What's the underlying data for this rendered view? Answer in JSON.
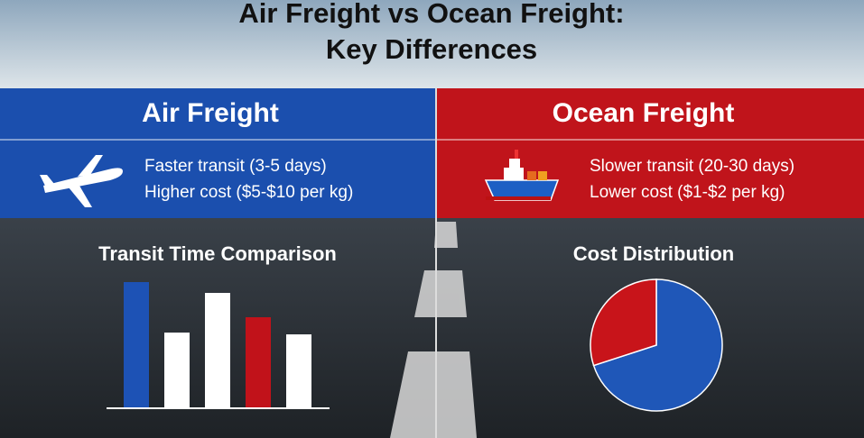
{
  "header": {
    "title_lines": [
      "Air Freight vs Ocean Freight:",
      "Key Differences"
    ]
  },
  "panels": [
    {
      "heading": "Air Freight",
      "color": "#1b4fae",
      "points": [
        "Faster transit (3-5 days)",
        "Higher cost ($5-$10 per kg)"
      ]
    },
    {
      "heading": "Ocean Freight",
      "color": "#c0141b",
      "points": [
        "Slower transit (20-30 days)",
        "Lower cost ($1-$2 per kg)"
      ]
    }
  ],
  "chart_data": [
    {
      "type": "bar",
      "title": "Transit Time Comparison",
      "categories": [
        null,
        null,
        null,
        null,
        null
      ],
      "values": [
        140,
        84,
        128,
        101,
        82
      ],
      "colors": [
        "#1d52b5",
        "#ffffff",
        "#ffffff",
        "#c1121a",
        "#ffffff"
      ],
      "ylim": [
        0,
        140
      ]
    },
    {
      "type": "pie",
      "title": "Cost Distribution",
      "categories": [
        null,
        null
      ],
      "values": [
        70,
        30
      ],
      "colors": [
        "#1f57b8",
        "#c8141a"
      ]
    }
  ]
}
